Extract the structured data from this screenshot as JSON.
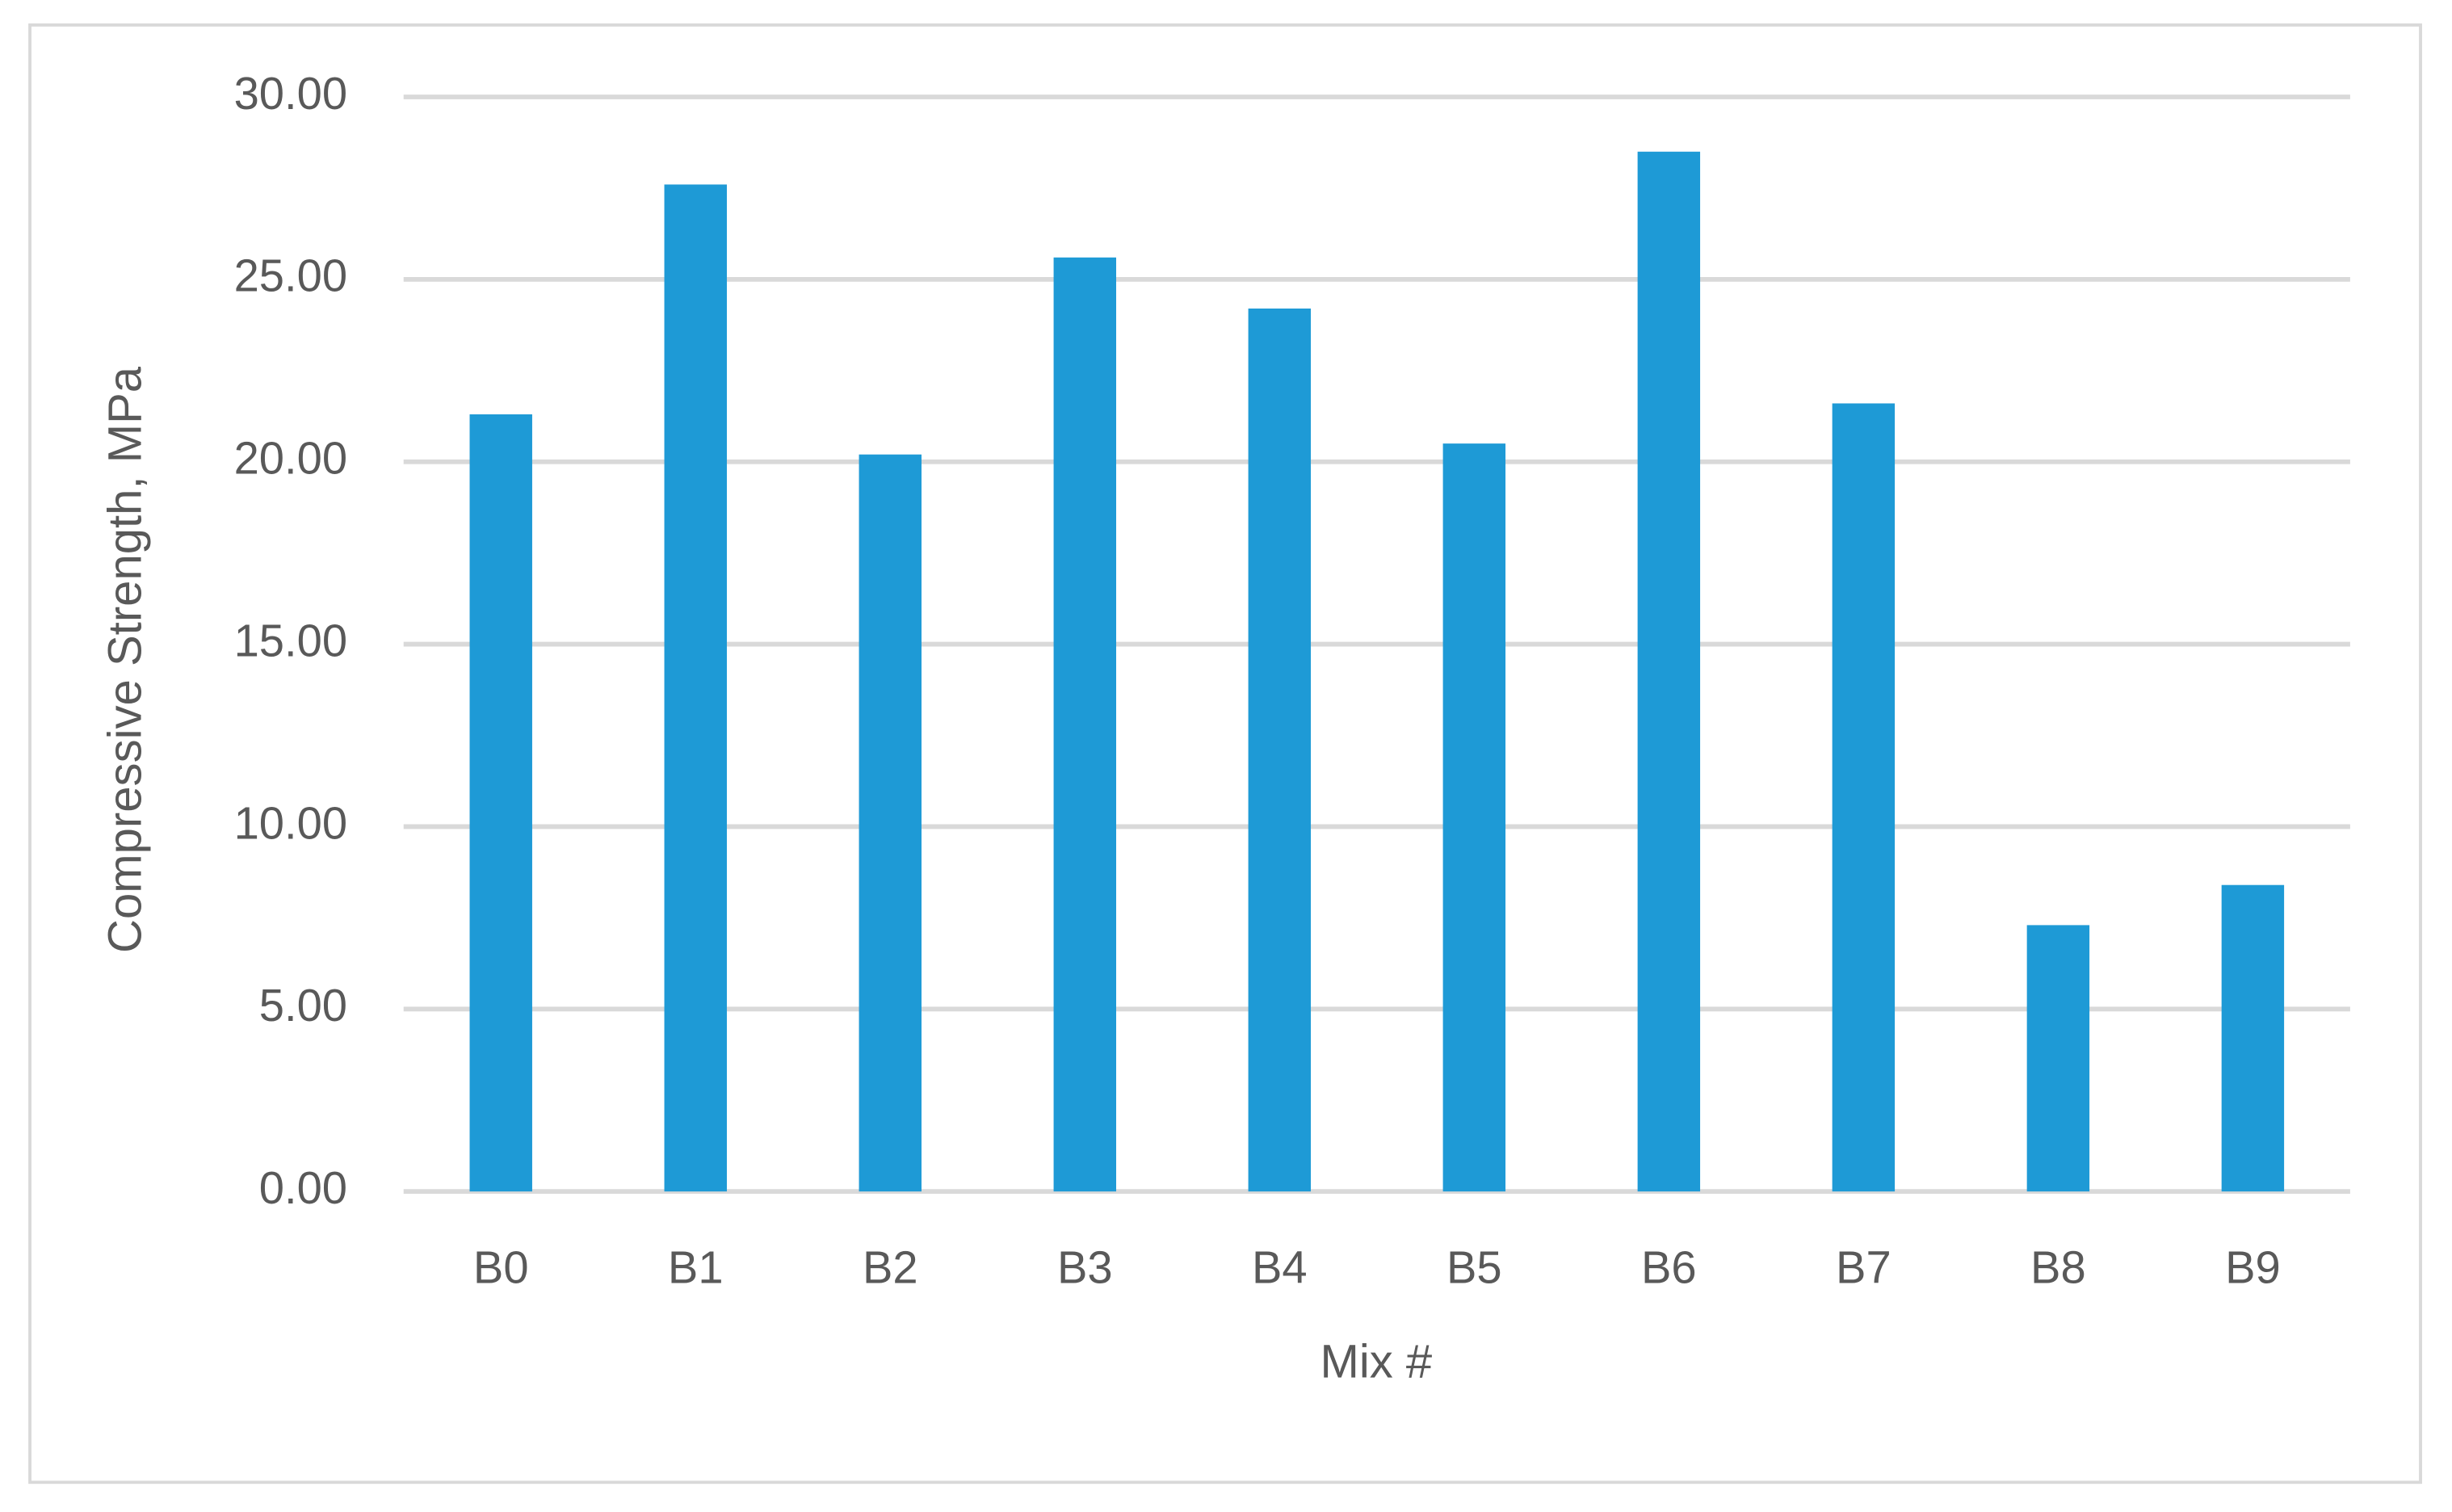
{
  "chart_data": {
    "type": "bar",
    "x_label": "Mix #",
    "y_label": "Compressive Strength, MPa",
    "categories": [
      "B0",
      "B1",
      "B2",
      "B3",
      "B4",
      "B5",
      "B6",
      "B7",
      "B8",
      "B9"
    ],
    "values": [
      21.3,
      27.6,
      20.2,
      25.6,
      24.2,
      20.5,
      28.5,
      21.6,
      7.3,
      8.4
    ],
    "color": "#1e9ad6",
    "ylim": [
      0,
      30
    ],
    "yticks": [
      {
        "value": 0,
        "label": "0.00"
      },
      {
        "value": 5,
        "label": "5.00"
      },
      {
        "value": 10,
        "label": "10.00"
      },
      {
        "value": 15,
        "label": "15.00"
      },
      {
        "value": 20,
        "label": "20.00"
      },
      {
        "value": 25,
        "label": "25.00"
      },
      {
        "value": 30,
        "label": "30.00"
      }
    ],
    "grid": true
  }
}
